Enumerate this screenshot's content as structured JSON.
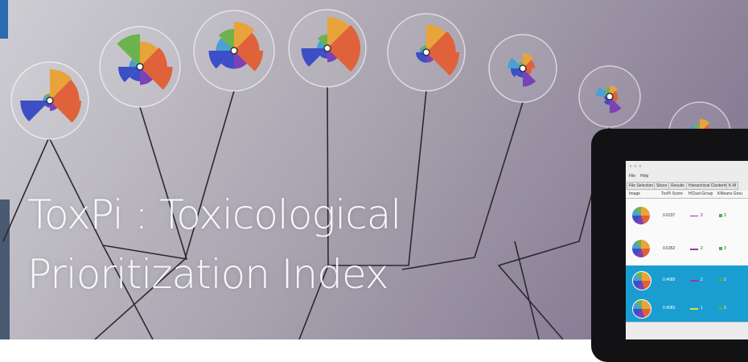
{
  "title": {
    "line1": "ToxPi : Toxicological",
    "line2": "Prioritization Index"
  },
  "app": {
    "menu": [
      "File",
      "Help"
    ],
    "tabs": [
      "File Selection",
      "Slices",
      "Results",
      "Hierarchical Clustering",
      "K-M"
    ],
    "columns": [
      "Image",
      "ToxPi Score",
      "HClust Group",
      "KMeans Grou"
    ],
    "rows": [
      [
        0.6237,
        2,
        3
      ],
      [
        0.6352,
        2,
        3
      ],
      [
        0.4689,
        2,
        2
      ],
      [
        0.4083,
        1,
        3
      ]
    ]
  }
}
